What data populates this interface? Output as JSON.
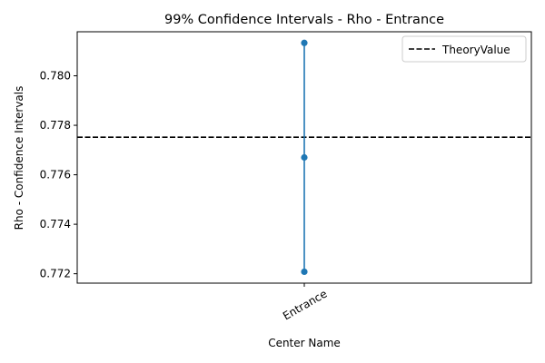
{
  "chart_data": {
    "type": "line",
    "title": "99% Confidence Intervals - Rho - Entrance",
    "xlabel": "Center Name",
    "ylabel": "Rho - Confidence Intervals",
    "categories": [
      "Entrance"
    ],
    "intervals": [
      {
        "category": "Entrance",
        "lower": 0.77208,
        "mean": 0.7767,
        "upper": 0.78133
      }
    ],
    "reference_line": {
      "name": "TheoryValue",
      "value": 0.77752,
      "style": "dashed",
      "color": "#000000"
    },
    "ylim": [
      0.77162,
      0.78178
    ],
    "yticks": [
      "0.772",
      "0.774",
      "0.776",
      "0.778",
      "0.780"
    ],
    "ytick_values": [
      0.772,
      0.774,
      0.776,
      0.778,
      0.78
    ],
    "legend": {
      "placement": "top-right",
      "entries": [
        "TheoryValue"
      ]
    },
    "grid": false,
    "series_color": "#1f77b4"
  }
}
